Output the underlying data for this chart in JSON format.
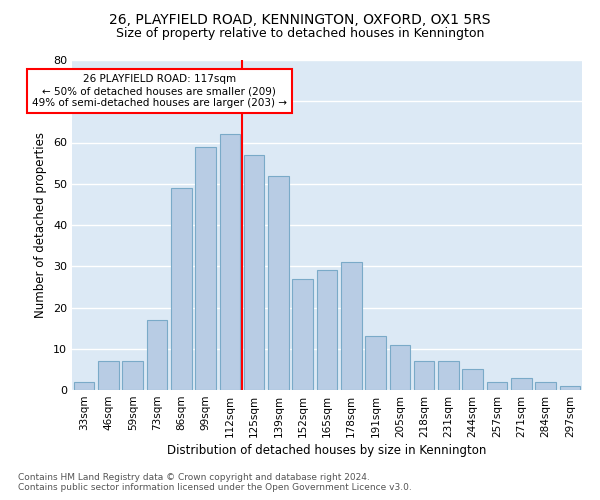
{
  "title": "26, PLAYFIELD ROAD, KENNINGTON, OXFORD, OX1 5RS",
  "subtitle": "Size of property relative to detached houses in Kennington",
  "xlabel": "Distribution of detached houses by size in Kennington",
  "ylabel": "Number of detached properties",
  "categories": [
    "33sqm",
    "46sqm",
    "59sqm",
    "73sqm",
    "86sqm",
    "99sqm",
    "112sqm",
    "125sqm",
    "139sqm",
    "152sqm",
    "165sqm",
    "178sqm",
    "191sqm",
    "205sqm",
    "218sqm",
    "231sqm",
    "244sqm",
    "257sqm",
    "271sqm",
    "284sqm",
    "297sqm"
  ],
  "values": [
    2,
    7,
    7,
    17,
    49,
    59,
    62,
    57,
    52,
    27,
    29,
    31,
    13,
    11,
    7,
    7,
    5,
    2,
    3,
    2,
    1
  ],
  "bar_color": "#b8cce4",
  "bar_edge_color": "#7aaac8",
  "background_color": "#dce9f5",
  "gridcolor": "#ffffff",
  "vline_color": "red",
  "annotation_text": "26 PLAYFIELD ROAD: 117sqm\n← 50% of detached houses are smaller (209)\n49% of semi-detached houses are larger (203) →",
  "annotation_box_color": "white",
  "annotation_box_edge": "red",
  "footnote1": "Contains HM Land Registry data © Crown copyright and database right 2024.",
  "footnote2": "Contains public sector information licensed under the Open Government Licence v3.0.",
  "ylim": [
    0,
    80
  ],
  "title_fontsize": 10,
  "subtitle_fontsize": 9,
  "xlabel_fontsize": 8.5,
  "ylabel_fontsize": 8.5,
  "tick_fontsize": 8,
  "xtick_fontsize": 7.5,
  "annot_fontsize": 7.5,
  "footnote_fontsize": 6.5
}
